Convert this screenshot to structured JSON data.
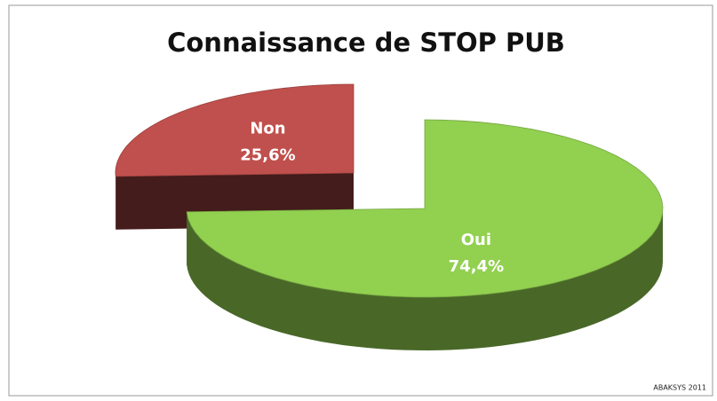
{
  "chart_data": {
    "type": "pie",
    "title": "Connaissance de STOP PUB",
    "categories": [
      "Oui",
      "Non"
    ],
    "values": [
      74.4,
      25.6
    ],
    "value_labels": [
      "74,4%",
      "25,6%"
    ],
    "colors": [
      "#92d050",
      "#c0504d"
    ],
    "source": "ABAKSYS 2011"
  }
}
